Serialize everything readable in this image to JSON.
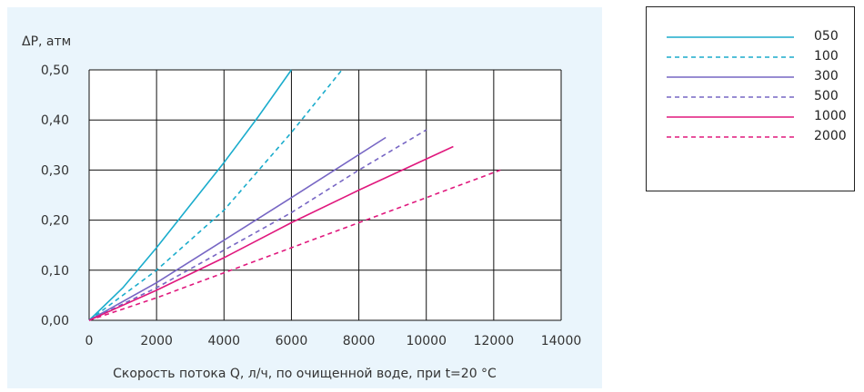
{
  "chart_data": {
    "type": "line",
    "ylabel": "ΔP, атм",
    "xlabel": "Скорость потока Q, л/ч, по очищенной воде, при t=20 °C",
    "xlim": [
      0,
      14000
    ],
    "ylim": [
      0,
      0.5
    ],
    "x_ticks": [
      "0",
      "2000",
      "4000",
      "6000",
      "8000",
      "10000",
      "12000",
      "14000"
    ],
    "y_ticks": [
      "0,00",
      "0,10",
      "0,20",
      "0,30",
      "0,40",
      "0,50"
    ],
    "grid": true,
    "legend_position": "right",
    "series": [
      {
        "name": "050",
        "color": "#1aaccc",
        "dash": "solid",
        "x": [
          0,
          1000,
          2000,
          3000,
          4000,
          5000,
          6000
        ],
        "y": [
          0,
          0.065,
          0.145,
          0.23,
          0.315,
          0.405,
          0.5
        ]
      },
      {
        "name": "100",
        "color": "#1aaccc",
        "dash": "dashed",
        "x": [
          0,
          2000,
          4000,
          6000,
          7500
        ],
        "y": [
          0,
          0.1,
          0.22,
          0.375,
          0.5
        ]
      },
      {
        "name": "300",
        "color": "#7766c4",
        "dash": "solid",
        "x": [
          0,
          2000,
          4000,
          6000,
          8800
        ],
        "y": [
          0,
          0.075,
          0.16,
          0.245,
          0.365
        ]
      },
      {
        "name": "500",
        "color": "#7766c4",
        "dash": "dashed",
        "x": [
          0,
          2000,
          4000,
          6000,
          8000,
          10000
        ],
        "y": [
          0,
          0.065,
          0.14,
          0.215,
          0.3,
          0.38
        ]
      },
      {
        "name": "1000",
        "color": "#e0187d",
        "dash": "solid",
        "x": [
          0,
          2000,
          4000,
          6000,
          8000,
          10800
        ],
        "y": [
          0,
          0.06,
          0.125,
          0.195,
          0.26,
          0.347
        ]
      },
      {
        "name": "2000",
        "color": "#e0187d",
        "dash": "dashed",
        "x": [
          0,
          2000,
          4000,
          6000,
          8000,
          10000,
          12200
        ],
        "y": [
          0,
          0.045,
          0.095,
          0.145,
          0.195,
          0.245,
          0.3
        ]
      }
    ]
  }
}
